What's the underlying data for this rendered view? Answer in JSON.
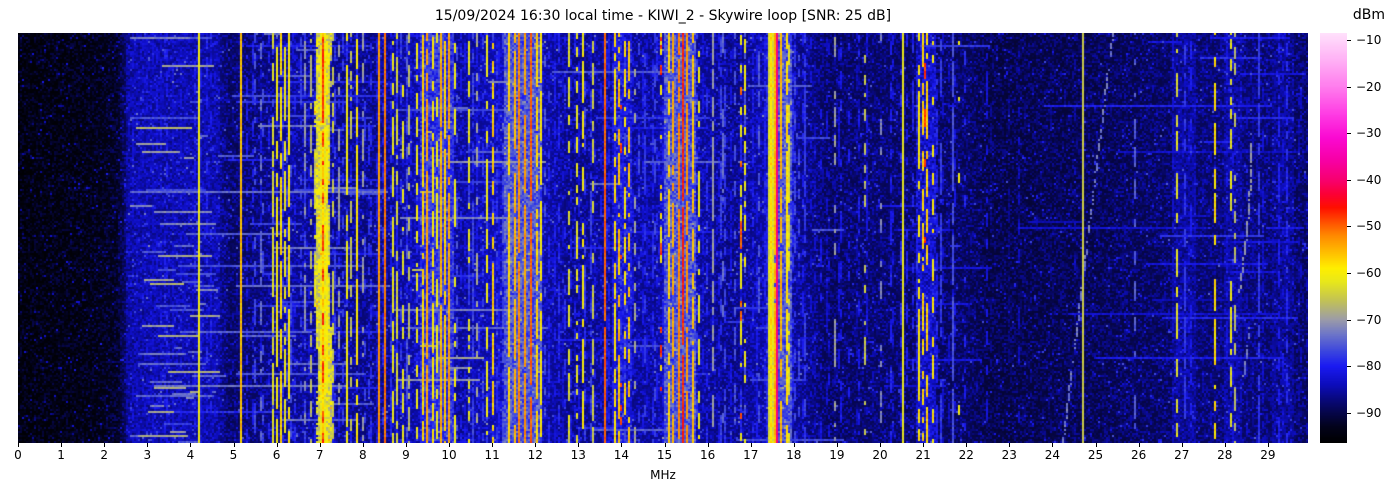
{
  "header": {
    "title": "15/09/2024 16:30 local time - KIWI_2 - Skywire loop [SNR: 25 dB]",
    "x_axis_label": "MHz",
    "colorbar_label": "dBm"
  },
  "chart_data": {
    "type": "heatmap",
    "title": "15/09/2024 16:30 local time - KIWI_2 - Skywire loop [SNR: 25 dB]",
    "xlabel": "MHz",
    "x_range": [
      0,
      29.93
    ],
    "x_ticks": [
      "0",
      "1",
      "2",
      "3",
      "4",
      "5",
      "6",
      "7",
      "8",
      "9",
      "10",
      "11",
      "12",
      "13",
      "14",
      "15",
      "16",
      "17",
      "18",
      "19",
      "20",
      "21",
      "22",
      "23",
      "24",
      "25",
      "26",
      "27",
      "28",
      "29"
    ],
    "colorbar": {
      "label": "dBm",
      "vmax": -8.5,
      "vmin": -96.5,
      "ticks": [
        {
          "v": -10,
          "label": "−10"
        },
        {
          "v": -20,
          "label": "−20"
        },
        {
          "v": -30,
          "label": "−30"
        },
        {
          "v": -40,
          "label": "−40"
        },
        {
          "v": -50,
          "label": "−50"
        },
        {
          "v": -60,
          "label": "−60"
        },
        {
          "v": -70,
          "label": "−70"
        },
        {
          "v": -80,
          "label": "−80"
        },
        {
          "v": -90,
          "label": "−90"
        }
      ],
      "stops": [
        [
          -96.5,
          "#000000"
        ],
        [
          -93,
          "#03031c"
        ],
        [
          -90,
          "#06064a"
        ],
        [
          -87,
          "#09097f"
        ],
        [
          -84,
          "#0d0dbc"
        ],
        [
          -80,
          "#1b1bf2"
        ],
        [
          -77,
          "#3a44e0"
        ],
        [
          -73,
          "#7078c8"
        ],
        [
          -70,
          "#9c9ca8"
        ],
        [
          -66,
          "#c2c257"
        ],
        [
          -62,
          "#e8e81c"
        ],
        [
          -59,
          "#ffef00"
        ],
        [
          -56,
          "#ffc400"
        ],
        [
          -52,
          "#ff8a00"
        ],
        [
          -49,
          "#ff4e00"
        ],
        [
          -46,
          "#ff1000"
        ],
        [
          -43,
          "#fc0038"
        ],
        [
          -40,
          "#f80070"
        ],
        [
          -36,
          "#f700a4"
        ],
        [
          -31,
          "#fb0ad2"
        ],
        [
          -26,
          "#ff3ce4"
        ],
        [
          -20,
          "#ff7eee"
        ],
        [
          -14,
          "#ffb4f6"
        ],
        [
          -8.5,
          "#ffe2fc"
        ]
      ]
    },
    "seed": 1337,
    "noise_profile": [
      [
        0,
        -96
      ],
      [
        1.6,
        -95.5
      ],
      [
        2.3,
        -94
      ],
      [
        2.6,
        -88
      ],
      [
        3.0,
        -87
      ],
      [
        4.6,
        -87
      ],
      [
        4.9,
        -90
      ],
      [
        5.5,
        -89
      ],
      [
        6.3,
        -87
      ],
      [
        8.2,
        -88
      ],
      [
        9.3,
        -86
      ],
      [
        10.3,
        -87
      ],
      [
        11.3,
        -85
      ],
      [
        12.2,
        -86
      ],
      [
        12.9,
        -88
      ],
      [
        13.6,
        -87
      ],
      [
        14.8,
        -87
      ],
      [
        15.0,
        -85
      ],
      [
        15.9,
        -87
      ],
      [
        16.6,
        -88
      ],
      [
        17.4,
        -86
      ],
      [
        18.0,
        -87
      ],
      [
        18.8,
        -90
      ],
      [
        19.8,
        -89.5
      ],
      [
        22.0,
        -90
      ],
      [
        22.5,
        -91.5
      ],
      [
        24.8,
        -91
      ],
      [
        26.8,
        -90
      ],
      [
        27.3,
        -89.5
      ],
      [
        28.6,
        -89
      ],
      [
        29.3,
        -89.5
      ],
      [
        29.93,
        -90
      ]
    ],
    "band_schema": [
      "f0_mhz",
      "f1_mhz",
      "level_dbm",
      "jitter_db",
      "wander_mhz"
    ],
    "bands": [
      [
        2.55,
        4.65,
        -86,
        3,
        0
      ],
      [
        6.94,
        7.24,
        -64,
        5,
        0.05
      ],
      [
        9.35,
        10.1,
        -79,
        4,
        0
      ],
      [
        11.3,
        12.12,
        -76,
        4,
        0
      ],
      [
        13.8,
        14.2,
        -82,
        4,
        0
      ],
      [
        15.02,
        15.7,
        -76,
        4,
        0
      ],
      [
        17.42,
        17.92,
        -76,
        4,
        0
      ],
      [
        20.86,
        21.28,
        -83,
        4,
        0
      ],
      [
        26.82,
        27.3,
        -86,
        3,
        0
      ],
      [
        28.02,
        28.36,
        -86,
        3,
        0
      ],
      [
        29.1,
        29.6,
        -87,
        3,
        0
      ]
    ],
    "carrier_schema": [
      "freq_mhz",
      "width_mhz",
      "level_dbm",
      "duty",
      "jitter_db"
    ],
    "carriers": [
      [
        4.21,
        0.035,
        -61,
        1,
        3
      ],
      [
        5.16,
        0.03,
        -56,
        1,
        4
      ],
      [
        5.62,
        0.025,
        -74,
        0.5,
        4
      ],
      [
        5.92,
        0.025,
        -63,
        0.7,
        4
      ],
      [
        6.02,
        0.03,
        -60,
        0.8,
        4
      ],
      [
        6.1,
        0.025,
        -58,
        0.85,
        5
      ],
      [
        6.19,
        0.025,
        -62,
        0.75,
        4
      ],
      [
        6.31,
        0.03,
        -59,
        0.9,
        4
      ],
      [
        6.64,
        0.02,
        -71,
        0.5,
        4
      ],
      [
        6.78,
        0.02,
        -67,
        0.5,
        4
      ],
      [
        7.08,
        0.1,
        -57,
        0.95,
        6
      ],
      [
        7.065,
        0.04,
        -48,
        0.5,
        5
      ],
      [
        7.18,
        0.035,
        -60,
        0.8,
        5
      ],
      [
        7.32,
        0.025,
        -65,
        0.6,
        4
      ],
      [
        7.45,
        0.02,
        -70,
        0.45,
        4
      ],
      [
        7.62,
        0.025,
        -61,
        0.8,
        4
      ],
      [
        7.74,
        0.02,
        -66,
        0.5,
        4
      ],
      [
        7.86,
        0.03,
        -59,
        0.85,
        4
      ],
      [
        8.01,
        0.02,
        -70,
        0.4,
        4
      ],
      [
        8.37,
        0.035,
        -53,
        1,
        3
      ],
      [
        8.51,
        0.035,
        -51,
        1,
        3
      ],
      [
        8.68,
        0.02,
        -62,
        0.8,
        4
      ],
      [
        8.79,
        0.02,
        -64,
        0.6,
        4
      ],
      [
        8.92,
        0.025,
        -62,
        0.5,
        5
      ],
      [
        9.06,
        0.02,
        -67,
        0.5,
        4
      ],
      [
        9.27,
        0.03,
        -61,
        0.6,
        5
      ],
      [
        9.41,
        0.03,
        -57,
        0.85,
        4
      ],
      [
        9.51,
        0.03,
        -54,
        0.9,
        4
      ],
      [
        9.63,
        0.025,
        -59,
        0.7,
        4
      ],
      [
        9.72,
        0.02,
        -61,
        0.6,
        4
      ],
      [
        9.83,
        0.035,
        -55,
        0.95,
        4
      ],
      [
        9.92,
        0.03,
        -57,
        0.8,
        4
      ],
      [
        10.01,
        0.035,
        -54,
        0.95,
        4
      ],
      [
        10.13,
        0.025,
        -61,
        0.6,
        4
      ],
      [
        10.45,
        0.03,
        -62,
        0.5,
        5
      ],
      [
        10.67,
        0.02,
        -69,
        0.4,
        4
      ],
      [
        10.86,
        0.025,
        -61,
        0.6,
        4
      ],
      [
        11.01,
        0.03,
        -57,
        0.7,
        5
      ],
      [
        11.39,
        0.04,
        -57,
        0.9,
        4
      ],
      [
        11.51,
        0.035,
        -55,
        0.9,
        4
      ],
      [
        11.64,
        0.04,
        -52,
        0.95,
        4
      ],
      [
        11.78,
        0.04,
        -53,
        0.9,
        4
      ],
      [
        11.91,
        0.045,
        -50,
        0.95,
        4
      ],
      [
        12.06,
        0.03,
        -57,
        0.8,
        4
      ],
      [
        12.13,
        0.025,
        -59,
        0.8,
        4
      ],
      [
        12.77,
        0.025,
        -63,
        0.5,
        5
      ],
      [
        12.97,
        0.025,
        -62,
        0.5,
        5
      ],
      [
        13.09,
        0.025,
        -60,
        0.5,
        5
      ],
      [
        13.36,
        0.02,
        -65,
        0.5,
        4
      ],
      [
        13.62,
        0.035,
        -50,
        0.97,
        3
      ],
      [
        13.85,
        0.03,
        -58,
        0.7,
        5
      ],
      [
        13.96,
        0.03,
        -56,
        0.7,
        5
      ],
      [
        14.0,
        0.02,
        -48,
        0.12,
        4
      ],
      [
        14.08,
        0.025,
        -58,
        0.6,
        5
      ],
      [
        14.16,
        0.025,
        -56,
        0.65,
        5
      ],
      [
        14.31,
        0.02,
        -69,
        0.4,
        4
      ],
      [
        14.56,
        0.02,
        -78,
        0.5,
        3
      ],
      [
        14.76,
        0.02,
        -77,
        0.5,
        3
      ],
      [
        14.93,
        0.02,
        -59,
        0.3,
        5
      ],
      [
        14.94,
        0.02,
        -48,
        0.1,
        4
      ],
      [
        15.1,
        0.03,
        -57,
        0.8,
        4
      ],
      [
        15.22,
        0.035,
        -54,
        0.85,
        4
      ],
      [
        15.32,
        0.04,
        -52,
        0.9,
        4
      ],
      [
        15.41,
        0.04,
        -47,
        0.96,
        4
      ],
      [
        15.52,
        0.035,
        -53,
        0.9,
        4
      ],
      [
        15.67,
        0.03,
        -56,
        0.85,
        4
      ],
      [
        15.8,
        0.025,
        -61,
        0.6,
        4
      ],
      [
        16.12,
        0.03,
        -70,
        0.55,
        3
      ],
      [
        16.36,
        0.02,
        -74,
        0.4,
        3
      ],
      [
        16.76,
        0.02,
        -61,
        0.4,
        5
      ],
      [
        16.78,
        0.02,
        -50,
        0.12,
        4
      ],
      [
        16.89,
        0.02,
        -61,
        0.35,
        5
      ],
      [
        17.49,
        0.05,
        -58,
        0.95,
        5
      ],
      [
        17.57,
        0.03,
        -55,
        0.9,
        4
      ],
      [
        17.63,
        0.035,
        -39,
        1,
        2
      ],
      [
        17.72,
        0.04,
        -55,
        0.9,
        4
      ],
      [
        17.82,
        0.03,
        -58,
        0.85,
        4
      ],
      [
        17.91,
        0.02,
        -63,
        0.6,
        4
      ],
      [
        18.26,
        0.03,
        -78,
        0.6,
        3
      ],
      [
        18.96,
        0.02,
        -70,
        0.3,
        4
      ],
      [
        19.66,
        0.02,
        -66,
        0.3,
        5
      ],
      [
        20.01,
        0.015,
        -72,
        0.3,
        4
      ],
      [
        20.53,
        0.03,
        -62,
        1,
        2
      ],
      [
        20.92,
        0.03,
        -59,
        0.55,
        5
      ],
      [
        21.01,
        0.035,
        -57,
        0.6,
        5
      ],
      [
        21.03,
        0.02,
        -48,
        0.1,
        4
      ],
      [
        21.11,
        0.035,
        -57,
        0.6,
        5
      ],
      [
        21.21,
        0.03,
        -59,
        0.5,
        5
      ],
      [
        21.41,
        0.025,
        -78,
        0.7,
        3
      ],
      [
        21.69,
        0.03,
        -76,
        0.8,
        3
      ],
      [
        21.83,
        0.02,
        -61,
        0.1,
        4
      ],
      [
        22.46,
        0.02,
        -82,
        0.4,
        3
      ],
      [
        23.21,
        0.015,
        -84,
        0.3,
        3
      ],
      [
        24.71,
        0.025,
        -65,
        1,
        2
      ],
      [
        25.91,
        0.02,
        -75,
        0.4,
        3
      ],
      [
        26.91,
        0.025,
        -63,
        0.45,
        5
      ],
      [
        27.06,
        0.025,
        -78,
        0.7,
        3
      ],
      [
        27.21,
        0.02,
        -80,
        0.6,
        3
      ],
      [
        27.79,
        0.03,
        -58,
        0.6,
        4
      ],
      [
        28.13,
        0.025,
        -62,
        0.5,
        5
      ],
      [
        28.23,
        0.02,
        -67,
        0.45,
        4
      ],
      [
        28.81,
        0.025,
        -78,
        0.8,
        3
      ],
      [
        29.26,
        0.02,
        -80,
        0.5,
        3
      ],
      [
        29.46,
        0.02,
        -79,
        0.5,
        3
      ]
    ],
    "carrier_field_schema": [
      "f0_mhz",
      "f1_mhz",
      "spacing_mhz",
      "level_dbm",
      "duty"
    ],
    "carrier_fields": [
      [
        2.6,
        4.6,
        0.12,
        -82,
        0.5
      ],
      [
        5.3,
        8.6,
        0.09,
        -80,
        0.55
      ],
      [
        8.6,
        12.25,
        0.09,
        -79,
        0.55
      ],
      [
        12.3,
        16.3,
        0.1,
        -80,
        0.5
      ],
      [
        16.4,
        18.2,
        0.09,
        -79,
        0.5
      ],
      [
        18.2,
        19.9,
        0.12,
        -83,
        0.45
      ],
      [
        20.2,
        21.9,
        0.11,
        -82,
        0.45
      ],
      [
        22.0,
        26.6,
        0.35,
        -87,
        0.3
      ],
      [
        26.7,
        29.9,
        0.15,
        -85,
        0.4
      ]
    ],
    "streak_schema": [
      "f0_mhz",
      "f1_mhz",
      "count",
      "level_dbm",
      "spread_db"
    ],
    "streaks": [
      [
        2.5,
        4.7,
        46,
        -72,
        5
      ],
      [
        2.5,
        8.6,
        22,
        -77,
        4
      ],
      [
        5.0,
        8.6,
        24,
        -76,
        4
      ],
      [
        8.6,
        12.3,
        16,
        -74,
        5
      ],
      [
        9.0,
        9.7,
        4,
        -67,
        2
      ],
      [
        12.3,
        16.3,
        12,
        -77,
        4
      ],
      [
        16.4,
        19.6,
        9,
        -78,
        3
      ],
      [
        19.6,
        22.6,
        9,
        -80,
        3
      ],
      [
        22.6,
        29.9,
        14,
        -82,
        3
      ],
      [
        26.5,
        29.9,
        8,
        -80,
        3
      ]
    ],
    "sweep_schema": [
      "f_at_top_mhz",
      "top_frac",
      "f_at_bottom_mhz",
      "bottom_frac",
      "level_dbm",
      "duty",
      "curve_exp"
    ],
    "sweeps": [
      [
        25.4,
        0.0,
        24.25,
        1.0,
        -73,
        0.6,
        1
      ],
      [
        28.62,
        0.27,
        28.34,
        0.63,
        -71,
        0.8,
        1.8
      ],
      [
        28.55,
        0.72,
        28.44,
        0.84,
        -73,
        0.8,
        1.5
      ]
    ]
  }
}
